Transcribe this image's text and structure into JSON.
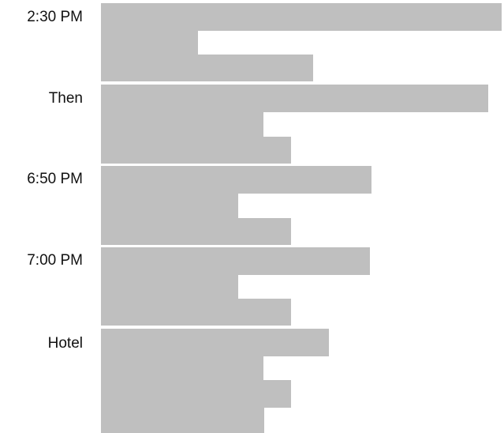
{
  "schedule": {
    "rows": [
      {
        "label": "2:30 PM"
      },
      {
        "label": "Then"
      },
      {
        "label": "6:50 PM"
      },
      {
        "label": "7:00 PM"
      },
      {
        "label": "Hotel"
      }
    ]
  },
  "colors": {
    "redaction": "#bfbfbf",
    "text": "#111111",
    "background": "#ffffff"
  }
}
